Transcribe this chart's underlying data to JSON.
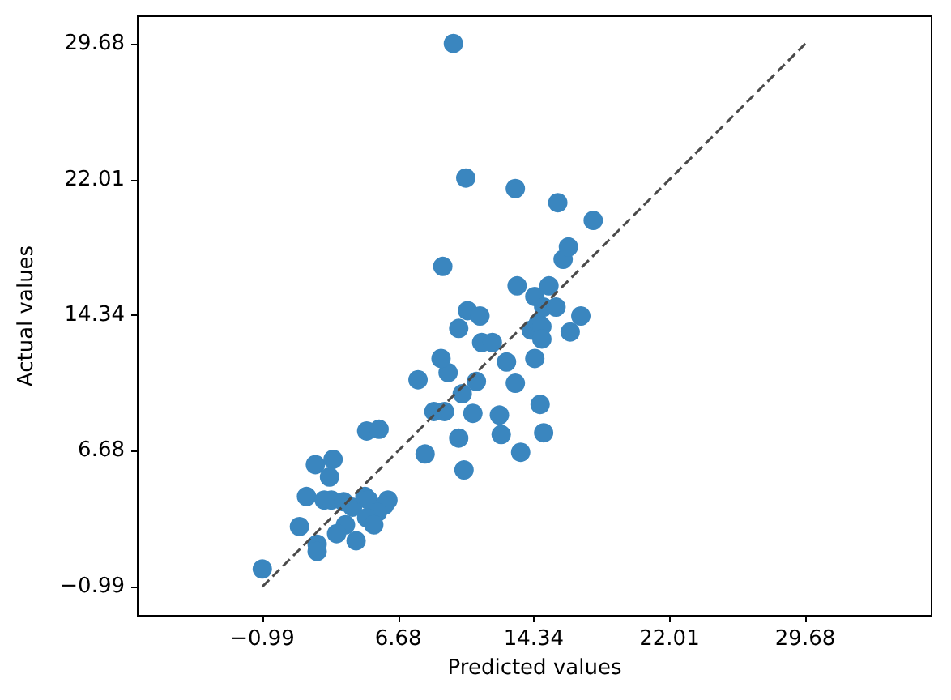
{
  "chart_data": {
    "type": "scatter",
    "xlabel": "Predicted values",
    "ylabel": "Actual values",
    "xlim": [
      -8.04,
      36.82
    ],
    "ylim": [
      -2.64,
      31.24
    ],
    "xticks": [
      {
        "value": -0.99,
        "label": "−0.99"
      },
      6.68,
      14.34,
      22.01,
      29.68
    ],
    "yticks": [
      {
        "value": -0.99,
        "label": "−0.99"
      },
      6.68,
      14.34,
      22.01,
      29.68
    ],
    "grid": false,
    "series": [
      {
        "color": "#3a86bf",
        "marker": "circle",
        "x": [
          -1.0,
          1.1,
          2.1,
          2.1,
          1.5,
          2.0,
          3.0,
          2.8,
          2.5,
          2.9,
          3.6,
          4.1,
          4.8,
          5.0,
          6.1,
          5.9,
          5.5,
          4.9,
          5.3,
          3.7,
          3.2,
          4.3,
          4.9,
          5.6,
          8.2,
          7.8,
          8.7,
          9.3,
          9.5,
          9.1,
          9.2,
          9.8,
          10.5,
          10.1,
          10.3,
          10.1,
          10.4,
          10.6,
          10.9,
          11.1,
          11.3,
          11.4,
          12.0,
          12.4,
          12.5,
          12.8,
          13.3,
          13.4,
          13.3,
          13.6,
          14.4,
          14.2,
          14.4,
          14.6,
          14.8,
          14.8,
          14.7,
          14.9,
          15.2,
          14.9,
          15.6,
          15.7,
          16.0,
          16.3,
          16.4,
          17.0,
          17.7
        ],
        "values": [
          0.0,
          2.4,
          1.4,
          1.0,
          4.1,
          5.9,
          6.2,
          5.2,
          3.9,
          3.9,
          3.8,
          3.5,
          4.1,
          3.9,
          3.9,
          3.6,
          3.2,
          2.9,
          2.5,
          2.5,
          2.0,
          1.6,
          7.8,
          7.9,
          6.5,
          10.7,
          8.9,
          8.9,
          11.1,
          11.9,
          17.1,
          29.7,
          22.1,
          13.6,
          9.9,
          7.4,
          5.6,
          14.6,
          8.8,
          10.6,
          14.3,
          12.8,
          12.8,
          8.7,
          7.6,
          11.7,
          21.5,
          16.0,
          10.5,
          6.6,
          11.9,
          13.5,
          15.4,
          13.9,
          13.7,
          13.0,
          9.3,
          7.7,
          16.0,
          14.8,
          14.8,
          20.7,
          17.5,
          18.2,
          13.4,
          14.3,
          19.7
        ]
      },
      {
        "type": "line",
        "color": "#4a4a4a",
        "line_style": "dashed",
        "marker": "none",
        "x": [
          -1.0,
          29.7
        ],
        "values": [
          -1.0,
          29.7
        ]
      }
    ]
  }
}
